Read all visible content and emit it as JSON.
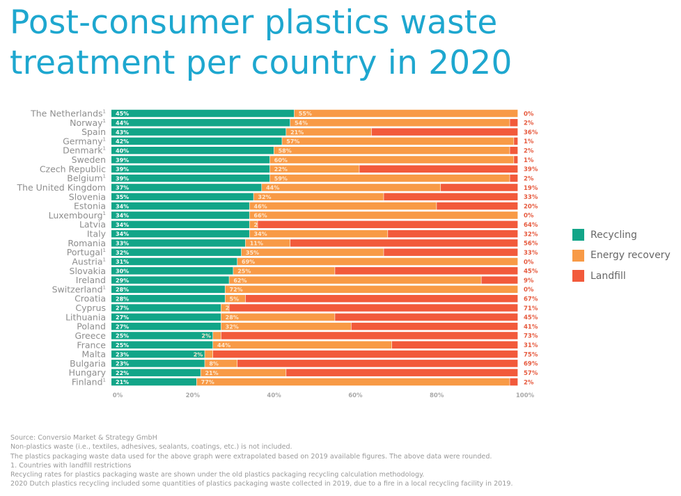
{
  "title_line1": "Post-consumer plastics waste",
  "title_line2": "treatment per country in 2020",
  "chart_data": {
    "type": "bar",
    "orientation": "horizontal",
    "stacked": true,
    "xlim": [
      0,
      100
    ],
    "x_ticks": [
      "0%",
      "20%",
      "40%",
      "60%",
      "80%",
      "100%"
    ],
    "grid": false,
    "legend_placement": "right",
    "footnote_marker": "1",
    "colors": {
      "Recycling": "#12a588",
      "Energy recovery": "#f89a46",
      "Landfill": "#f25a3b",
      "landfill_label": "#e65a3e"
    },
    "series": [
      {
        "name": "Recycling"
      },
      {
        "name": "Energy recovery"
      },
      {
        "name": "Landfill"
      }
    ],
    "rows": [
      {
        "country": "The Netherlands",
        "restricted": true,
        "values": [
          45,
          55,
          0
        ]
      },
      {
        "country": "Norway",
        "restricted": true,
        "values": [
          44,
          54,
          2
        ]
      },
      {
        "country": "Spain",
        "restricted": false,
        "values": [
          43,
          21,
          36
        ]
      },
      {
        "country": "Germany",
        "restricted": true,
        "values": [
          42,
          57,
          1
        ]
      },
      {
        "country": "Denmark",
        "restricted": true,
        "values": [
          40,
          58,
          2
        ]
      },
      {
        "country": "Sweden",
        "restricted": false,
        "values": [
          39,
          60,
          1
        ]
      },
      {
        "country": "Czech Republic",
        "restricted": false,
        "values": [
          39,
          22,
          39
        ]
      },
      {
        "country": "Belgium",
        "restricted": true,
        "values": [
          39,
          59,
          2
        ]
      },
      {
        "country": "The United Kingdom",
        "restricted": false,
        "values": [
          37,
          44,
          19
        ]
      },
      {
        "country": "Slovenia",
        "restricted": false,
        "values": [
          35,
          32,
          33
        ]
      },
      {
        "country": "Estonia",
        "restricted": false,
        "values": [
          34,
          46,
          20
        ]
      },
      {
        "country": "Luxembourg",
        "restricted": true,
        "values": [
          34,
          66,
          0
        ]
      },
      {
        "country": "Latvia",
        "restricted": false,
        "values": [
          34,
          2,
          64
        ]
      },
      {
        "country": "Italy",
        "restricted": false,
        "values": [
          34,
          34,
          32
        ]
      },
      {
        "country": "Romania",
        "restricted": false,
        "values": [
          33,
          11,
          56
        ]
      },
      {
        "country": "Portugal",
        "restricted": true,
        "values": [
          32,
          35,
          33
        ]
      },
      {
        "country": "Austria",
        "restricted": true,
        "values": [
          31,
          69,
          0
        ]
      },
      {
        "country": "Slovakia",
        "restricted": false,
        "values": [
          30,
          25,
          45
        ]
      },
      {
        "country": "Ireland",
        "restricted": false,
        "values": [
          29,
          62,
          9
        ]
      },
      {
        "country": "Switzerland",
        "restricted": true,
        "values": [
          28,
          72,
          0
        ]
      },
      {
        "country": "Croatia",
        "restricted": false,
        "values": [
          28,
          5,
          67
        ]
      },
      {
        "country": "Cyprus",
        "restricted": false,
        "values": [
          27,
          2,
          71
        ]
      },
      {
        "country": "Lithuania",
        "restricted": false,
        "values": [
          27,
          28,
          45
        ]
      },
      {
        "country": "Poland",
        "restricted": false,
        "values": [
          27,
          32,
          41
        ]
      },
      {
        "country": "Greece",
        "restricted": false,
        "values": [
          25,
          2,
          73
        ]
      },
      {
        "country": "France",
        "restricted": false,
        "values": [
          25,
          44,
          31
        ]
      },
      {
        "country": "Malta",
        "restricted": false,
        "values": [
          23,
          2,
          75
        ]
      },
      {
        "country": "Bulgaria",
        "restricted": false,
        "values": [
          23,
          8,
          69
        ]
      },
      {
        "country": "Hungary",
        "restricted": false,
        "values": [
          22,
          21,
          57
        ]
      },
      {
        "country": "Finland",
        "restricted": true,
        "values": [
          21,
          77,
          2
        ]
      }
    ]
  },
  "footer": [
    "Source: Conversio Market & Strategy GmbH",
    "Non-plastics waste (i.e., textiles, adhesives, sealants, coatings, etc.) is not included.",
    "The plastics packaging waste data used for the above graph were extrapolated based on 2019 available figures. The above data were rounded.",
    "1. Countries with landfill restrictions",
    "Recycling rates for plastics packaging waste are shown under the old plastics packaging recycling calculation methodology.",
    "2020 Dutch plastics recycling included some quantities of plastics packaging waste collected in 2019, due to a fire in a local recycling facility in 2019."
  ]
}
